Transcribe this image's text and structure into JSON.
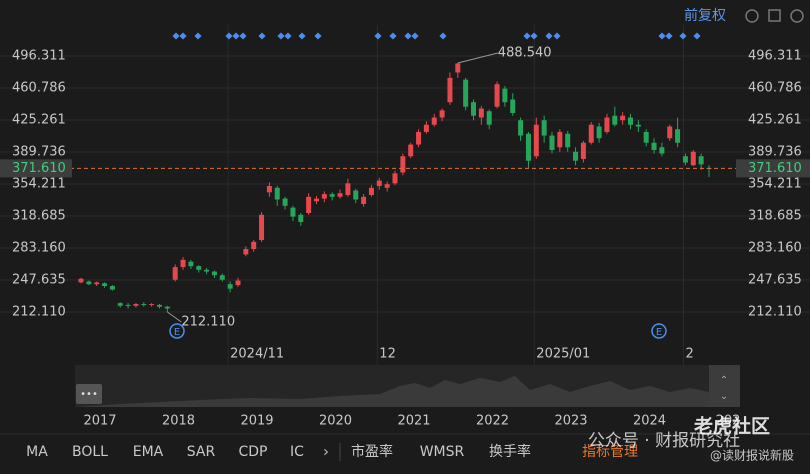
{
  "chart_data": {
    "type": "candlestick",
    "categories": [
      null,
      null,
      null,
      null,
      null,
      null,
      null,
      null,
      null,
      null,
      null,
      null,
      null,
      null,
      null,
      null,
      null,
      null,
      null,
      "2024/11",
      null,
      null,
      null,
      null,
      null,
      null,
      null,
      null,
      null,
      null,
      null,
      null,
      null,
      null,
      null,
      null,
      null,
      null,
      "12",
      null,
      null,
      null,
      null,
      null,
      null,
      null,
      null,
      null,
      null,
      null,
      null,
      null,
      null,
      null,
      null,
      null,
      null,
      null,
      "2025/01",
      null,
      null,
      null,
      null,
      null,
      null,
      null,
      null,
      null,
      null,
      null,
      null,
      null,
      null,
      null,
      null,
      null,
      null,
      "2",
      null,
      null,
      null
    ],
    "open": [
      245,
      246,
      243,
      244,
      241,
      222,
      220,
      219,
      221,
      220,
      220,
      218,
      248,
      262,
      268,
      263,
      259,
      257,
      253,
      243,
      242,
      276,
      282,
      292,
      345,
      350,
      338,
      328,
      320,
      322,
      335,
      338,
      343,
      340,
      342,
      347,
      332,
      342,
      352,
      350,
      355,
      367,
      385,
      398,
      412,
      420,
      428,
      445,
      478,
      470,
      445,
      428,
      435,
      440,
      460,
      448,
      425,
      410,
      385,
      425,
      408,
      395,
      410,
      390,
      382,
      400,
      418,
      412,
      430,
      425,
      428,
      420,
      412,
      400,
      395,
      405,
      415,
      385,
      375,
      385,
      372
    ],
    "close": [
      249,
      243,
      245,
      241,
      237,
      219,
      219,
      221,
      220,
      221,
      218,
      216,
      262,
      270,
      263,
      259,
      257,
      253,
      248,
      238,
      247,
      282,
      290,
      320,
      352,
      337,
      330,
      318,
      312,
      340,
      338,
      343,
      340,
      344,
      355,
      337,
      340,
      350,
      358,
      354,
      366,
      385,
      398,
      412,
      420,
      428,
      436,
      472,
      488,
      440,
      430,
      438,
      420,
      465,
      445,
      433,
      408,
      380,
      420,
      408,
      392,
      412,
      395,
      380,
      400,
      420,
      405,
      428,
      420,
      430,
      420,
      418,
      400,
      392,
      388,
      418,
      400,
      378,
      390,
      376,
      371.61
    ],
    "high": [
      250,
      247,
      246,
      245,
      242,
      223,
      222,
      222,
      223,
      222,
      221,
      219,
      265,
      273,
      270,
      264,
      261,
      258,
      255,
      246,
      250,
      285,
      292,
      323,
      356,
      352,
      340,
      330,
      322,
      344,
      341,
      346,
      345,
      348,
      360,
      349,
      343,
      353,
      361,
      357,
      369,
      388,
      400,
      415,
      424,
      432,
      438,
      478,
      488.54,
      472,
      448,
      441,
      437,
      468,
      463,
      455,
      428,
      412,
      428,
      430,
      412,
      415,
      413,
      395,
      402,
      423,
      422,
      432,
      440,
      434,
      432,
      425,
      415,
      405,
      400,
      420,
      428,
      388,
      392,
      388,
      375
    ],
    "low": [
      244,
      242,
      241,
      239,
      236,
      217,
      216,
      217,
      218,
      218,
      216,
      212.11,
      246,
      259,
      260,
      256,
      254,
      250,
      246,
      234,
      240,
      274,
      279,
      290,
      340,
      330,
      326,
      313,
      308,
      320,
      332,
      334,
      336,
      338,
      340,
      333,
      329,
      340,
      348,
      346,
      353,
      364,
      383,
      395,
      410,
      418,
      424,
      442,
      472,
      436,
      425,
      420,
      415,
      438,
      440,
      430,
      402,
      372,
      382,
      400,
      388,
      390,
      390,
      375,
      378,
      398,
      400,
      410,
      418,
      420,
      415,
      412,
      396,
      388,
      385,
      402,
      395,
      375,
      374,
      370,
      362
    ],
    "up_color": "#e5484d",
    "down_color": "#26a65b",
    "ylim": [
      175.5,
      530.7
    ],
    "yticks": [
      {
        "value": 212.11,
        "label": "212.110"
      },
      247.635,
      {
        "value": 283.16,
        "label": "283.160"
      },
      318.685,
      354.211,
      389.736,
      425.261,
      460.786,
      496.311
    ],
    "grid": true,
    "price_line": {
      "value": 371.61,
      "label": "371.610"
    },
    "annotations": [
      {
        "index": 48,
        "value": 488.54,
        "label": "488.540"
      },
      {
        "index": 11,
        "value": 212.11,
        "label": "212.110"
      }
    ]
  },
  "toolbar": {
    "adjust": "前复权"
  },
  "event_markers": [
    "E",
    "E"
  ],
  "navigator": {
    "years": [
      "2017",
      "2018",
      "2019",
      "2020",
      "2021",
      "2022",
      "2023",
      "2024",
      "202"
    ]
  },
  "tabs": [
    "MA",
    "BOLL",
    "EMA",
    "SAR",
    "CDP",
    "IC",
    "市盈率",
    "WMSR",
    "换手率",
    "指标管理"
  ],
  "watermark": {
    "brand": "老虎社区",
    "account": "公众号 · 财报研究社",
    "handle": "@读财报说新股"
  }
}
